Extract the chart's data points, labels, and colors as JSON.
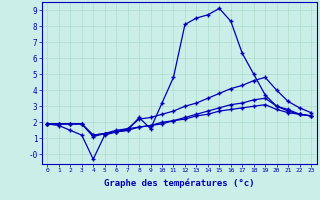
{
  "xlabel": "Graphe des températures (°c)",
  "hours": [
    0,
    1,
    2,
    3,
    4,
    5,
    6,
    7,
    8,
    9,
    10,
    11,
    12,
    13,
    14,
    15,
    16,
    17,
    18,
    19,
    20,
    21,
    22,
    23
  ],
  "line1": [
    1.9,
    1.8,
    1.5,
    1.2,
    -0.3,
    1.2,
    1.4,
    1.5,
    2.3,
    1.6,
    3.2,
    4.8,
    8.1,
    8.5,
    8.7,
    9.1,
    8.3,
    6.3,
    5.0,
    3.7,
    3.0,
    2.8,
    2.5,
    2.4
  ],
  "line2": [
    1.9,
    1.9,
    1.9,
    1.9,
    1.1,
    1.3,
    1.5,
    1.6,
    2.2,
    2.3,
    2.5,
    2.7,
    3.0,
    3.2,
    3.5,
    3.8,
    4.1,
    4.3,
    4.6,
    4.8,
    4.0,
    3.3,
    2.9,
    2.6
  ],
  "line3": [
    1.9,
    1.9,
    1.9,
    1.9,
    1.2,
    1.3,
    1.4,
    1.6,
    1.7,
    1.8,
    2.0,
    2.1,
    2.3,
    2.5,
    2.7,
    2.9,
    3.1,
    3.2,
    3.4,
    3.5,
    3.0,
    2.7,
    2.5,
    2.4
  ],
  "line4": [
    1.9,
    1.9,
    1.9,
    1.9,
    1.2,
    1.3,
    1.4,
    1.5,
    1.7,
    1.8,
    1.9,
    2.1,
    2.2,
    2.4,
    2.5,
    2.7,
    2.8,
    2.9,
    3.0,
    3.1,
    2.8,
    2.6,
    2.5,
    2.4
  ],
  "line_color": "#0000bb",
  "bg_color": "#cceee8",
  "grid_color": "#aaddcc",
  "ylim": [
    -0.6,
    9.5
  ],
  "xlim": [
    -0.5,
    23.5
  ],
  "ytick_vals": [
    0,
    1,
    2,
    3,
    4,
    5,
    6,
    7,
    8,
    9
  ],
  "ytick_labels": [
    "-0",
    "1",
    "2",
    "3",
    "4",
    "5",
    "6",
    "7",
    "8",
    "9"
  ],
  "xticks": [
    0,
    1,
    2,
    3,
    4,
    5,
    6,
    7,
    8,
    9,
    10,
    11,
    12,
    13,
    14,
    15,
    16,
    17,
    18,
    19,
    20,
    21,
    22,
    23
  ],
  "xlabel_fontsize": 6.5,
  "tick_fontsize_x": 4.5,
  "tick_fontsize_y": 5.5,
  "lw": 0.9,
  "ms": 3.0
}
